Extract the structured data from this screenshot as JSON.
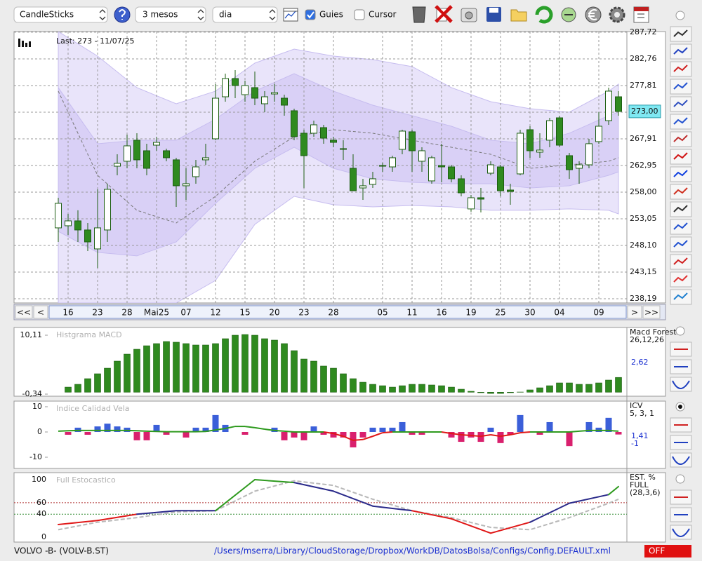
{
  "toolbar": {
    "chart_type": "CandleSticks",
    "period": "3 mesos",
    "interval": "dia",
    "guides_label": "Guies",
    "guides_checked": true,
    "cursor_label": "Cursor",
    "cursor_checked": false
  },
  "navigation": {
    "first": "<<",
    "prev": "<",
    "next": ">",
    "last": ">>"
  },
  "chart_data": [
    {
      "type": "candlestick",
      "last_label": "Last: 273 - 11/07/25",
      "price_tag": {
        "value": 273,
        "label": "273,00"
      },
      "open": [
        251.36,
        251.75,
        252.66,
        250.97,
        247.45,
        250.97,
        262.82,
        263.74,
        267.65,
        265.69,
        266.73,
        265.69,
        264.0,
        259.18,
        260.87,
        264.0,
        267.91,
        275.72,
        279.11,
        276.11,
        277.42,
        274.42,
        276.24,
        275.46,
        273.12,
        268.95,
        268.95,
        269.99,
        267.65,
        266.08,
        262.43,
        258.78,
        259.44,
        262.95,
        262.69,
        265.95,
        269.21,
        263.74,
        260.09,
        262.95,
        262.69,
        260.48,
        254.88,
        256.96,
        261.52,
        262.69,
        258.39,
        261.39,
        269.6,
        265.43,
        267.65,
        271.81,
        264.78,
        262.43,
        263.08,
        267.39,
        271.29,
        275.72
      ],
      "high": [
        256.96,
        253.96,
        254.62,
        252.27,
        258.52,
        259.57,
        265.04,
        268.69,
        268.95,
        266.99,
        268.3,
        266.08,
        264.39,
        262.43,
        264.0,
        266.99,
        278.07,
        280.02,
        280.67,
        278.72,
        280.41,
        276.77,
        278.07,
        276.11,
        273.51,
        269.6,
        271.29,
        270.51,
        268.3,
        267.65,
        265.04,
        260.48,
        261.78,
        263.48,
        264.78,
        269.6,
        269.6,
        266.34,
        264.78,
        266.99,
        263.08,
        261.13,
        257.48,
        258.78,
        263.74,
        263.08,
        259.57,
        269.6,
        270.25,
        268.95,
        271.81,
        272.21,
        265.3,
        263.74,
        267.91,
        272.86,
        277.42,
        276.77
      ],
      "low": [
        248.75,
        250.05,
        248.75,
        247.06,
        243.93,
        248.75,
        261.13,
        262.43,
        262.43,
        261.13,
        265.69,
        263.74,
        255.27,
        256.57,
        259.57,
        263.08,
        267.65,
        274.81,
        275.46,
        274.81,
        274.16,
        272.86,
        274.81,
        272.21,
        267.65,
        258.78,
        268.3,
        266.99,
        266.34,
        264.0,
        258.26,
        256.57,
        258.78,
        261.78,
        261.78,
        265.04,
        261.78,
        261.78,
        259.57,
        259.83,
        259.83,
        257.22,
        254.36,
        254.23,
        261.13,
        257.22,
        255.66,
        261.13,
        264.39,
        264.39,
        266.34,
        266.34,
        260.48,
        259.57,
        262.43,
        266.99,
        270.51,
        272.21
      ],
      "close": [
        255.92,
        252.66,
        250.97,
        248.75,
        251.36,
        258.52,
        263.35,
        266.6,
        264.0,
        262.43,
        267.25,
        264.39,
        259.18,
        259.57,
        262.69,
        264.39,
        275.46,
        279.11,
        277.81,
        277.81,
        275.46,
        275.72,
        276.5,
        274.16,
        268.3,
        264.78,
        270.51,
        268.04,
        267.25,
        265.95,
        258.26,
        259.18,
        260.48,
        262.82,
        264.39,
        269.34,
        265.69,
        265.69,
        264.39,
        262.69,
        260.48,
        257.87,
        256.96,
        256.7,
        263.08,
        258.26,
        258.13,
        268.95,
        265.69,
        265.82,
        271.29,
        266.73,
        262.17,
        263.08,
        267.0,
        270.25,
        276.77,
        273.0
      ],
      "up_color": "#ffffff",
      "down_color": "#2f8a1f",
      "edge_color": "#1d5e12",
      "x_labels": {
        "index": [
          1,
          4,
          7,
          10,
          13,
          16,
          19,
          22,
          25,
          28,
          33,
          36,
          39,
          42,
          45,
          48,
          51,
          55
        ],
        "labels": [
          "16",
          "23",
          "28",
          "Mai25",
          "07",
          "12",
          "15",
          "20",
          "23",
          "28",
          "05",
          "11",
          "16",
          "19",
          "25",
          "30",
          "04",
          "09"
        ]
      },
      "bands": {
        "index": [
          0,
          4,
          8,
          12,
          16,
          20,
          24,
          28,
          32,
          36,
          40,
          44,
          48,
          52,
          56,
          57
        ],
        "outer_upper": [
          287.84,
          283.28,
          277.42,
          274.42,
          276.77,
          281.98,
          284.58,
          283.28,
          282.63,
          281.33,
          277.42,
          274.81,
          273.51,
          272.86,
          276.77,
          278.07
        ],
        "outer_lower": [
          237.41,
          237.41,
          237.41,
          237.41,
          241.59,
          252.01,
          257.22,
          255.66,
          255.27,
          255.53,
          255.27,
          254.62,
          254.62,
          254.88,
          254.62,
          253.96
        ],
        "inner_upper": [
          277.42,
          266.99,
          267.65,
          267.65,
          271.55,
          276.77,
          280.02,
          276.77,
          274.16,
          272.21,
          270.25,
          267.65,
          266.99,
          268.95,
          272.21,
          272.86
        ],
        "inner_lower": [
          250.71,
          246.8,
          246.15,
          248.75,
          255.92,
          262.43,
          266.34,
          262.43,
          260.48,
          259.83,
          259.57,
          259.57,
          258.78,
          259.18,
          261.13,
          261.78
        ],
        "ma": [
          276.77,
          261.13,
          254.62,
          252.27,
          257.22,
          263.74,
          268.3,
          269.6,
          268.95,
          267.65,
          266.34,
          265.04,
          262.43,
          263.08,
          263.74,
          264.39
        ],
        "outer_color": "#e9e4fa",
        "inner_color": "#d9d0f6"
      },
      "ylim": [
        237.41,
        287.84
      ],
      "yticks": [
        {
          "value": 238.19,
          "label": "238,19"
        },
        {
          "value": 243.15,
          "label": "243,15"
        },
        {
          "value": 248.1,
          "label": "248,10"
        },
        {
          "value": 253.05,
          "label": "253,05"
        },
        {
          "value": 258.0,
          "label": "258,00"
        },
        {
          "value": 262.95,
          "label": "262,95"
        },
        {
          "value": 267.91,
          "label": "267,91"
        },
        {
          "value": 272.86,
          "label": "272,86"
        },
        {
          "value": 277.81,
          "label": "277,81"
        },
        {
          "value": 282.76,
          "label": "282,76"
        },
        {
          "value": 287.72,
          "label": "287,72"
        }
      ],
      "grid": true
    },
    {
      "type": "bar",
      "title": "Histgrama MACD",
      "indicator_name": "Macd Forest",
      "params": "26,12,26",
      "last_value": {
        "value": 2.62,
        "label": "2,62"
      },
      "values": [
        null,
        0.9,
        1.4,
        2.4,
        3.27,
        4.26,
        5.51,
        6.75,
        7.62,
        8.24,
        8.62,
        8.99,
        8.87,
        8.62,
        8.37,
        8.37,
        8.62,
        9.49,
        10.11,
        10.23,
        10.11,
        9.49,
        9.24,
        8.62,
        7.37,
        5.88,
        5.51,
        4.64,
        4.26,
        3.27,
        2.4,
        1.77,
        1.4,
        1.15,
        0.9,
        1.15,
        1.4,
        1.4,
        1.28,
        1.15,
        0.9,
        0.53,
        0.16,
        -0.09,
        -0.22,
        -0.22,
        -0.09,
        0.03,
        0.41,
        0.78,
        1.15,
        1.65,
        1.65,
        1.4,
        1.4,
        1.65,
        2.15,
        2.62
      ],
      "color": "#2f8a1f",
      "ylim": [
        -0.71,
        11.48
      ],
      "yticks": [
        {
          "value": -0.34,
          "label": "-0,34"
        },
        {
          "value": 10.11,
          "label": "10,11"
        }
      ]
    },
    {
      "type": "bar",
      "title": "Indice Calidad Vela",
      "indicator_name": "ICV",
      "params": "5, 3, 1",
      "last_value": {
        "value": 1.41,
        "label": "1,41"
      },
      "last_signal": -1,
      "values": [
        0,
        -1.1,
        1.7,
        -1.1,
        2.2,
        3.3,
        2.2,
        1.7,
        -3.3,
        -3.3,
        2.8,
        -1.1,
        0,
        -2.2,
        1.7,
        1.7,
        6.7,
        2.8,
        0,
        -1.1,
        0,
        0,
        1.7,
        -3.3,
        -2.2,
        -3.3,
        2.2,
        -1.1,
        -2.2,
        -2.2,
        -6.1,
        -2.2,
        1.7,
        1.7,
        1.7,
        3.9,
        -1.1,
        -1.1,
        0,
        0,
        -2.2,
        -3.9,
        -2.2,
        -3.9,
        1.7,
        -4.4,
        -1.1,
        6.7,
        0,
        -1.1,
        3.9,
        0,
        -5.6,
        0,
        3.9,
        1.7,
        5.6,
        -1
      ],
      "line": [
        0.3,
        0.5,
        0.6,
        0.6,
        0.6,
        0.6,
        0.6,
        0.6,
        0.5,
        0.3,
        0.2,
        0.1,
        0.1,
        0.1,
        0.1,
        0.2,
        0.8,
        1.4,
        2.2,
        2.2,
        1.7,
        1.1,
        0.6,
        0.3,
        0,
        0,
        0,
        0,
        -0.6,
        -1.7,
        -3.3,
        -3.0,
        -1.7,
        -0.3,
        0,
        0,
        0,
        0,
        0,
        0,
        -0.6,
        -1.1,
        -1.4,
        -1.7,
        -1.1,
        -1.7,
        -1.1,
        -0.3,
        0,
        0,
        0,
        0,
        0,
        0.3,
        0.6,
        0.6,
        0.6,
        0.3
      ],
      "positive_color": "#3b5fd9",
      "negative_color": "#d9206e",
      "line_up_color": "#2e9a1e",
      "line_down_color": "#e01818",
      "ylim": [
        -14.44,
        12.22
      ],
      "yticks": [
        -10,
        0,
        10
      ]
    },
    {
      "type": "line",
      "title": "Full Estocastico",
      "indicator_name": "EST. %",
      "params": "FULL",
      "params2": "(28,3,6)",
      "x": [
        0,
        4,
        8,
        12,
        16,
        20,
        24,
        28,
        32,
        36,
        40,
        44,
        48,
        52,
        56,
        57
      ],
      "k": [
        22,
        29,
        40,
        46,
        46,
        100,
        95,
        80,
        54,
        46,
        32,
        7,
        26,
        59,
        74,
        88
      ],
      "d": [
        13,
        26,
        34,
        44,
        46,
        80,
        98,
        90,
        66,
        46,
        34,
        17,
        13,
        34,
        59,
        66
      ],
      "k_colors": [
        "#e01818",
        "#e01818",
        "#2a2a8a",
        "#2a2a8a",
        "#2e9a1e",
        "#2e9a1e",
        "#2a2a8a",
        "#2a2a8a",
        "#2a2a8a",
        "#e01818",
        "#e01818",
        "#e01818",
        "#2a2a8a",
        "#2a2a8a",
        "#2e9a1e"
      ],
      "d_color": "#b8b8b8",
      "levels": [
        {
          "value": 60,
          "color": "#b03030"
        },
        {
          "value": 40,
          "color": "#308a30"
        }
      ],
      "ylim": [
        -8.5,
        112.2
      ],
      "yticks": [
        0,
        40,
        60,
        100
      ]
    }
  ],
  "status": {
    "symbol": "VOLVO -B- (VOLV-B.ST)",
    "config_path": "/Users/mserra/Library/CloudStorage/Dropbox/WorkDB/DatosBolsa/Configs/Config.DEFAULT.xml",
    "mode": "OFF"
  }
}
